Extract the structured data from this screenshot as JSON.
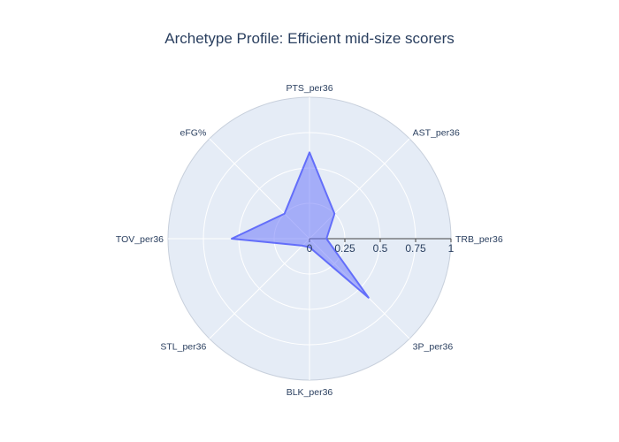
{
  "chart_data": {
    "type": "radar",
    "title": "Archetype Profile: Efficient mid-size scorers",
    "axes": [
      "PTS_per36",
      "AST_per36",
      "TRB_per36",
      "3P_per36",
      "BLK_per36",
      "STL_per36",
      "TOV_per36",
      "eFG%"
    ],
    "series": [
      {
        "name": "",
        "values": [
          0.61,
          0.25,
          0.12,
          0.59,
          0.06,
          0.07,
          0.55,
          0.25
        ]
      }
    ],
    "radial_range": [
      0,
      1
    ],
    "radial_ticks": [
      0,
      0.25,
      0.5,
      0.75,
      1
    ],
    "radial_tick_labels": [
      "0",
      "0.25",
      "0.5",
      "0.75",
      "1"
    ],
    "colors": {
      "plot_bg": "#e5ecf6",
      "grid": "#ffffff",
      "series_line": "#636efa",
      "series_fill": "rgba(99,110,250,0.5)",
      "text": "#2a3f5f"
    },
    "grid": true,
    "legend": "none"
  }
}
